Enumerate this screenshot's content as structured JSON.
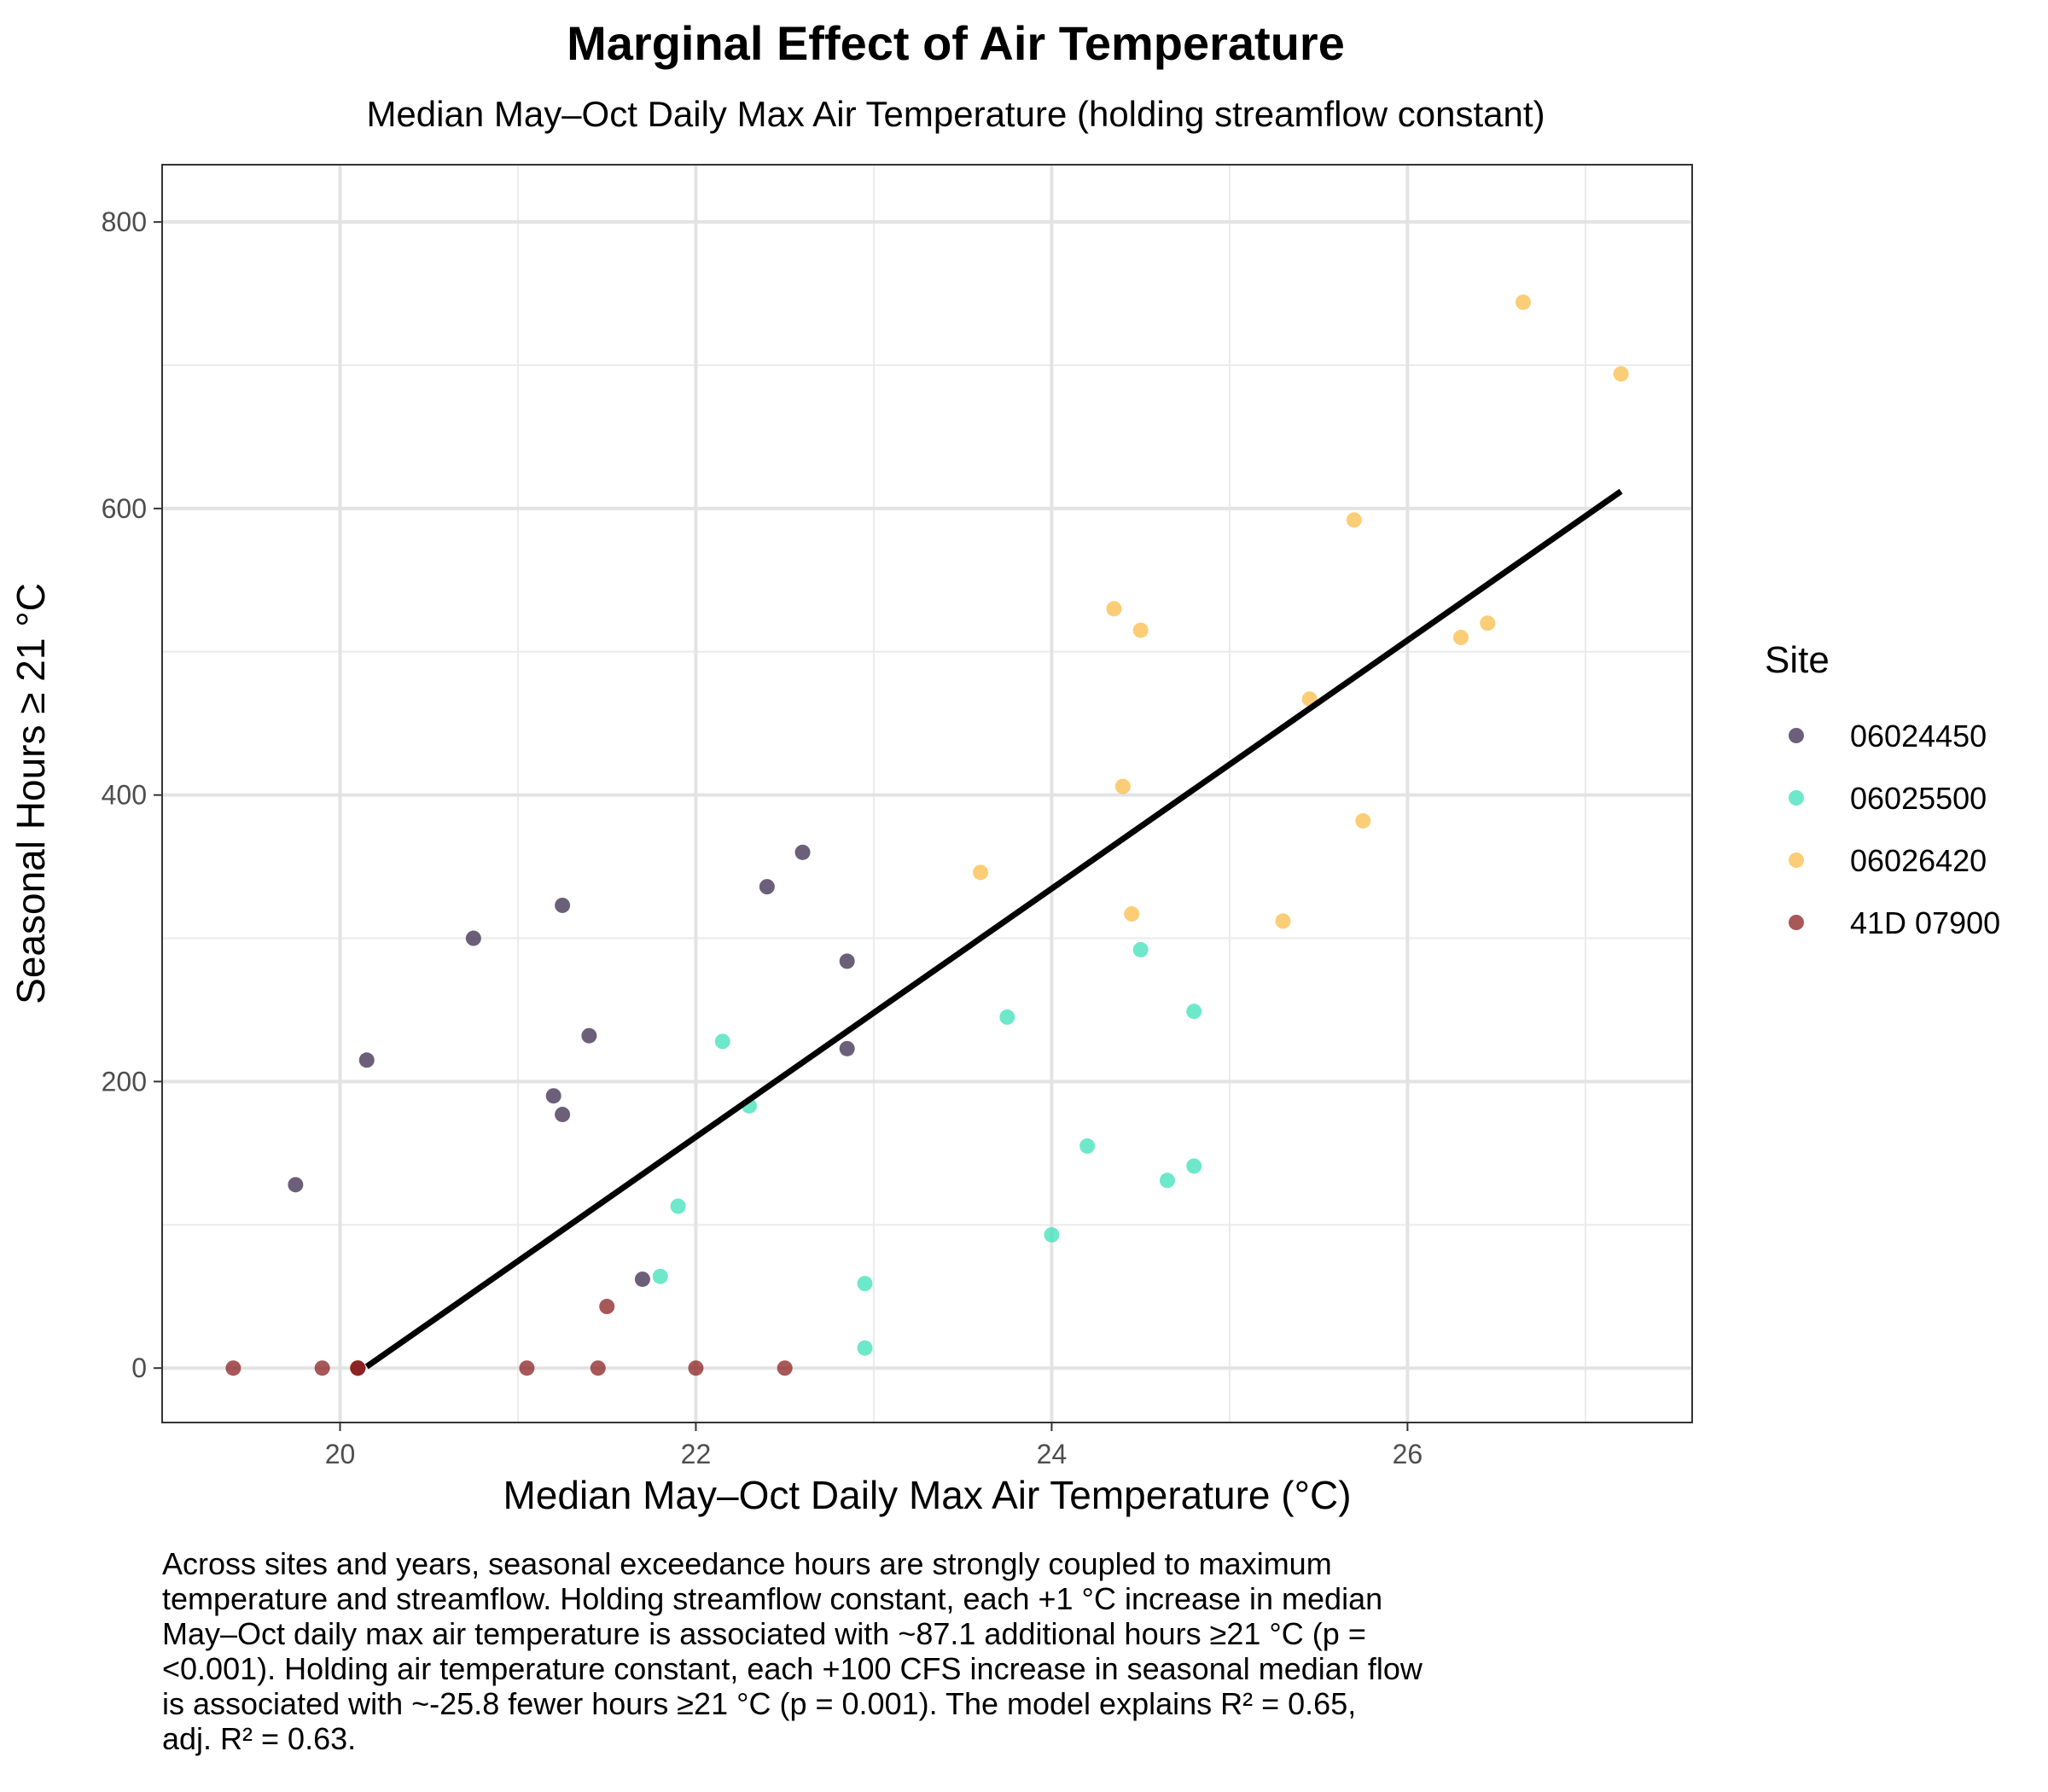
{
  "chart_data": {
    "type": "scatter",
    "title": "Marginal Effect of Air Temperature",
    "subtitle": "Median May–Oct Daily Max Air Temperature (holding streamflow constant)",
    "xlabel": "Median May–Oct Daily Max Air Temperature (°C)",
    "ylabel": "Seasonal Hours ≥ 21 °C",
    "xlim": [
      19.0,
      27.6
    ],
    "ylim": [
      -38,
      840
    ],
    "x_ticks": [
      20,
      22,
      24,
      26
    ],
    "x_minor": [
      21,
      23,
      25,
      27
    ],
    "y_ticks": [
      0,
      200,
      400,
      600,
      800
    ],
    "y_minor": [
      100,
      300,
      500,
      700
    ],
    "grid": true,
    "legend": {
      "title": "Site",
      "position": "right"
    },
    "series": [
      {
        "name": "06024450",
        "color": "#3b2a4d",
        "points": [
          [
            19.75,
            128
          ],
          [
            20.15,
            215
          ],
          [
            20.75,
            300
          ],
          [
            21.2,
            190
          ],
          [
            21.25,
            323
          ],
          [
            21.25,
            177
          ],
          [
            21.4,
            232
          ],
          [
            21.7,
            62
          ],
          [
            22.4,
            336
          ],
          [
            22.6,
            360
          ],
          [
            22.85,
            284
          ],
          [
            22.85,
            223
          ]
        ]
      },
      {
        "name": "06025500",
        "color": "#3de0b8",
        "points": [
          [
            21.8,
            64
          ],
          [
            21.9,
            113
          ],
          [
            22.15,
            228
          ],
          [
            22.3,
            183
          ],
          [
            22.95,
            59
          ],
          [
            22.95,
            14
          ],
          [
            23.75,
            245
          ],
          [
            24.0,
            93
          ],
          [
            24.2,
            155
          ],
          [
            24.5,
            292
          ],
          [
            24.65,
            131
          ],
          [
            24.8,
            249
          ],
          [
            24.8,
            141
          ]
        ]
      },
      {
        "name": "06026420",
        "color": "#f9bc4a",
        "points": [
          [
            23.6,
            346
          ],
          [
            24.35,
            530
          ],
          [
            24.4,
            406
          ],
          [
            24.45,
            317
          ],
          [
            24.5,
            515
          ],
          [
            25.3,
            312
          ],
          [
            25.45,
            467
          ],
          [
            25.7,
            592
          ],
          [
            25.75,
            382
          ],
          [
            26.3,
            510
          ],
          [
            26.45,
            520
          ],
          [
            26.65,
            744
          ],
          [
            27.2,
            694
          ]
        ]
      },
      {
        "name": "41D 07900",
        "color": "#8b2020",
        "points": [
          [
            19.4,
            0
          ],
          [
            19.9,
            0
          ],
          [
            20.1,
            0
          ],
          [
            20.1,
            0
          ],
          [
            20.1,
            0
          ],
          [
            21.05,
            0
          ],
          [
            21.45,
            0
          ],
          [
            21.5,
            43
          ],
          [
            22.0,
            0
          ],
          [
            22.5,
            0
          ]
        ]
      }
    ],
    "fit_line": {
      "x": [
        20.15,
        27.2
      ],
      "y": [
        1,
        612
      ],
      "color": "#000000"
    }
  },
  "caption": "Across sites and years, seasonal exceedance hours are strongly coupled to maximum\ntemperature and streamflow. Holding streamflow constant, each +1 °C increase in median\nMay–Oct daily max air temperature is associated with ~87.1 additional hours ≥21 °C (p =\n<0.001). Holding air temperature constant, each +100 CFS increase in seasonal median flow\nis associated with ~-25.8 fewer hours ≥21 °C (p = 0.001). The model explains R² = 0.65,\nadj. R² = 0.63."
}
